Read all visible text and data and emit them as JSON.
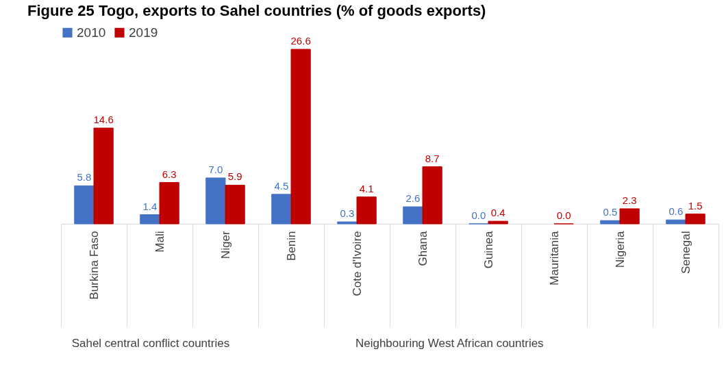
{
  "chart_data": {
    "type": "bar",
    "title": "Figure 25     Togo, exports to Sahel countries (% of goods exports)",
    "categories": [
      "Burkina Faso",
      "Mali",
      "Niger",
      "Benin",
      "Cote d'Ivoire",
      "Ghana",
      "Guinea",
      "Mauritania",
      "Nigeria",
      "Senegal"
    ],
    "series": [
      {
        "name": "2010",
        "color": "#4472c4",
        "values": [
          5.8,
          1.4,
          7.0,
          4.5,
          0.3,
          2.6,
          0.0,
          null,
          0.5,
          0.6
        ],
        "value_labels": [
          "5.8",
          "1.4",
          "7.0",
          "4.5",
          "0.3",
          "2.6",
          "0.0",
          null,
          "0.5",
          "0.6"
        ]
      },
      {
        "name": "2019",
        "color": "#c00000",
        "values": [
          14.6,
          6.3,
          5.9,
          26.6,
          4.1,
          8.7,
          0.4,
          0.0,
          2.3,
          1.5
        ],
        "value_labels": [
          "14.6",
          "6.3",
          "5.9",
          "26.6",
          "4.1",
          "8.7",
          "0.4",
          "0.0",
          "2.3",
          "1.5"
        ]
      }
    ],
    "legend": "top",
    "annotations": [
      "Sahel central conflict countries",
      "Neighbouring West African countries"
    ]
  }
}
